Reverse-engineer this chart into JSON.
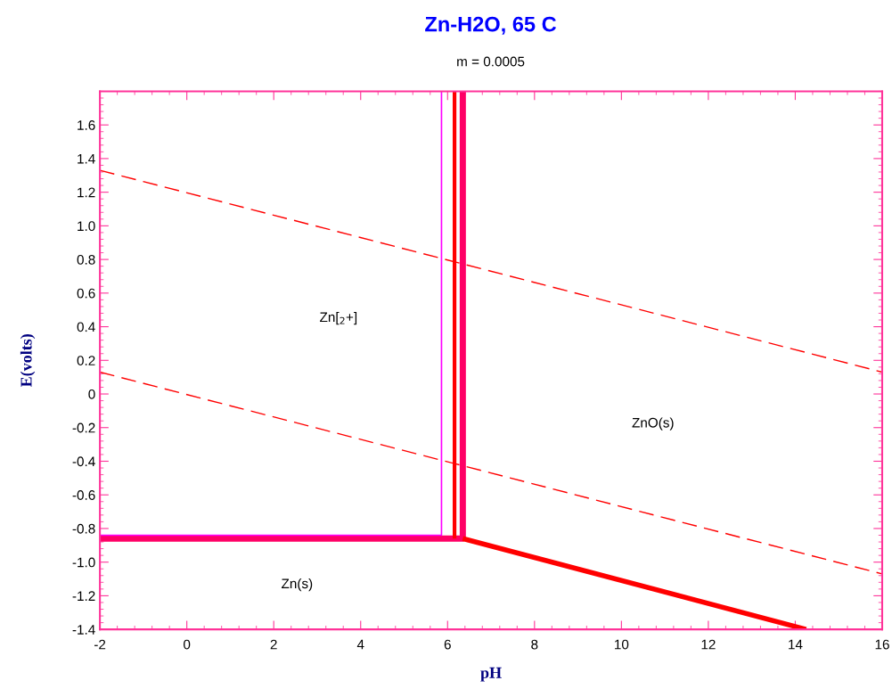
{
  "chart_data": {
    "type": "line",
    "title": "Zn-H2O, 65 C",
    "subtitle": "m = 0.0005",
    "xlabel": "pH",
    "ylabel": "E(volts)",
    "xlim": [
      -2,
      16
    ],
    "xticks": [
      -2,
      0,
      2,
      4,
      6,
      8,
      10,
      12,
      14,
      16
    ],
    "ylim": [
      -1.4,
      1.8
    ],
    "yticks": [
      {
        "value": -1.4,
        "label": "-1.4"
      },
      {
        "value": -1.2,
        "label": "-1.2"
      },
      {
        "value": -1.0,
        "label": "-1.0"
      },
      {
        "value": -0.8,
        "label": "-0.8"
      },
      {
        "value": -0.6,
        "label": "-0.6"
      },
      {
        "value": -0.4,
        "label": "-0.4"
      },
      {
        "value": -0.2,
        "label": "-0.2"
      },
      0,
      {
        "value": 0.2,
        "label": "0.2"
      },
      {
        "value": 0.4,
        "label": "0.4"
      },
      {
        "value": 0.6,
        "label": "0.6"
      },
      {
        "value": 0.8,
        "label": "0.8"
      },
      {
        "value": 1.0,
        "label": "1.0"
      },
      {
        "value": 1.2,
        "label": "1.2"
      },
      {
        "value": 1.4,
        "label": "1.4"
      },
      {
        "value": 1.6,
        "label": "1.6"
      }
    ],
    "grid": false,
    "marker": "none",
    "series": [
      {
        "color": "#ff0000",
        "line_style": "dashed",
        "x": [
          -2,
          16
        ],
        "values": [
          1.33,
          0.13
        ]
      },
      {
        "color": "#ff0000",
        "line_style": "dashed",
        "x": [
          -2,
          16
        ],
        "values": [
          0.13,
          -1.07
        ]
      },
      {
        "color": "#ff0066",
        "line_style": "solid",
        "x": [
          -2,
          6.35,
          6.35
        ],
        "values": [
          -0.86,
          -0.86,
          1.8
        ]
      },
      {
        "color": "#ff0000",
        "line_style": "solid",
        "x": [
          6.35,
          14.25
        ],
        "values": [
          -0.86,
          -1.4
        ]
      },
      {
        "color": "#ff0000",
        "line_style": "solid",
        "x": [
          6.16,
          6.16
        ],
        "values": [
          -0.86,
          1.8
        ]
      },
      {
        "color": "#ff00ff",
        "line_style": "solid",
        "x": [
          -2,
          5.86,
          5.86
        ],
        "values": [
          -0.84,
          -0.84,
          1.8
        ]
      }
    ],
    "annotations": [
      "Zn[$_{2}$+]",
      "ZnO(s)",
      "Zn(s)"
    ]
  }
}
